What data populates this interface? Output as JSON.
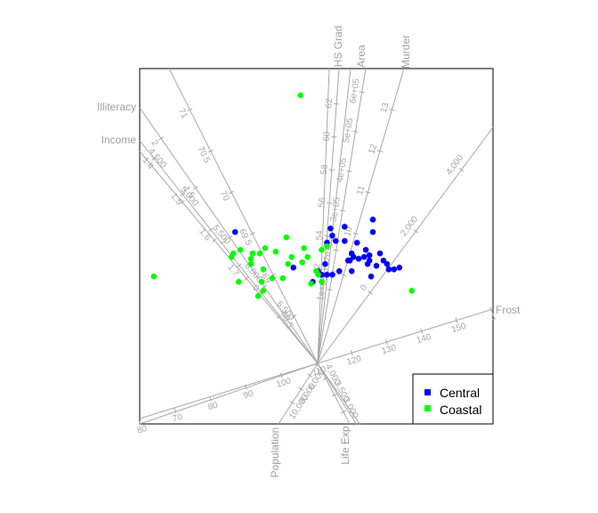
{
  "chart_data": {
    "type": "scatter",
    "title": "",
    "xlabel": "",
    "ylabel": "",
    "xlim": [
      -1,
      1
    ],
    "ylim": [
      -1,
      1
    ],
    "grid": false,
    "legend_position": "bottom-right",
    "legend": [
      {
        "name": "Central",
        "color": "#0000ff"
      },
      {
        "name": "Coastal",
        "color": "#00ff00"
      }
    ],
    "series": [
      {
        "name": "Central",
        "color": "#0000ff",
        "points": [
          [
            0.32,
            0.08
          ],
          [
            0.16,
            0.11
          ],
          [
            -0.46,
            0.08
          ],
          [
            0.08,
            0.1
          ],
          [
            0.18,
            -0.08
          ],
          [
            0.24,
            -0.07
          ],
          [
            0.3,
            -0.08
          ],
          [
            0.34,
            -0.11
          ],
          [
            0.36,
            -0.04
          ],
          [
            0.38,
            -0.08
          ],
          [
            0.4,
            -0.1
          ],
          [
            0.41,
            -0.13
          ],
          [
            0.44,
            -0.13
          ],
          [
            0.47,
            -0.12
          ],
          [
            0.21,
            -0.06
          ],
          [
            0.27,
            -0.06
          ],
          [
            0.29,
            -0.1
          ],
          [
            0.3,
            -0.05
          ],
          [
            0.19,
            -0.08
          ],
          [
            0.2,
            -0.14
          ],
          [
            0.13,
            -0.14
          ],
          [
            0.09,
            -0.16
          ],
          [
            0.05,
            -0.1
          ],
          [
            0.06,
            -0.16
          ],
          [
            0.31,
            -0.17
          ],
          [
            0.41,
            -0.13
          ],
          [
            -0.13,
            -0.12
          ],
          [
            -0.02,
            -0.2
          ],
          [
            0.2,
            -0.04
          ],
          [
            0.28,
            -0.02
          ],
          [
            0.32,
            0.15
          ],
          [
            0.23,
            0.02
          ],
          [
            0.16,
            0.03
          ],
          [
            0.11,
            0.03
          ],
          [
            0.09,
            0.06
          ],
          [
            0.06,
            0.02
          ],
          [
            0.03,
            -0.16
          ],
          [
            0.01,
            -0.14
          ]
        ]
      },
      {
        "name": "Coastal",
        "color": "#00ff00",
        "points": [
          [
            -0.09,
            0.85
          ],
          [
            -0.92,
            -0.17
          ],
          [
            -0.48,
            -0.06
          ],
          [
            -0.47,
            -0.04
          ],
          [
            -0.43,
            -0.02
          ],
          [
            -0.36,
            -0.04
          ],
          [
            -0.32,
            -0.04
          ],
          [
            -0.29,
            -0.01
          ],
          [
            -0.23,
            -0.03
          ],
          [
            -0.17,
            0.05
          ],
          [
            -0.14,
            -0.06
          ],
          [
            -0.16,
            -0.1
          ],
          [
            -0.3,
            -0.13
          ],
          [
            -0.37,
            -0.1
          ],
          [
            -0.44,
            -0.2
          ],
          [
            -0.33,
            -0.28
          ],
          [
            -0.25,
            -0.18
          ],
          [
            -0.19,
            -0.18
          ],
          [
            -0.31,
            -0.2
          ],
          [
            -0.08,
            -0.09
          ],
          [
            -0.05,
            -0.06
          ],
          [
            0.03,
            -0.02
          ],
          [
            -0.07,
            -0.01
          ],
          [
            -0.03,
            -0.21
          ],
          [
            0.0,
            -0.14
          ],
          [
            0.06,
            0.0
          ],
          [
            0.01,
            -0.16
          ],
          [
            -0.37,
            -0.07
          ],
          [
            0.54,
            -0.25
          ],
          [
            -0.3,
            -0.25
          ],
          [
            0.03,
            -0.2
          ]
        ]
      }
    ],
    "variable_axes": [
      {
        "name": "HS Grad",
        "ticks": [
          "52",
          "54",
          "56",
          "58",
          "60",
          "62"
        ]
      },
      {
        "name": "Area",
        "ticks": [
          "1e+05",
          "2e+05",
          "3e+05",
          "4e+05",
          "5e+05",
          "6e+05"
        ]
      },
      {
        "name": "Murder",
        "ticks": [
          "9",
          "10",
          "11",
          "12",
          "13"
        ]
      },
      {
        "name": "Illiteracy",
        "ticks": [
          "0.5",
          "1",
          "1.5",
          "2"
        ]
      },
      {
        "name": "",
        "ticks": [
          "0",
          "2,000",
          "4,000"
        ]
      },
      {
        "name": "Income",
        "ticks": [
          "1.7",
          "1.6",
          "1.5",
          "1.4"
        ]
      },
      {
        "name": "",
        "ticks": [
          "6,500",
          "6,000",
          "5,500",
          "5,000",
          "4,500"
        ]
      },
      {
        "name": "",
        "ticks": [
          "68.5",
          "69",
          "69.5",
          "70",
          "70.5",
          "71"
        ]
      },
      {
        "name": "Frost",
        "ticks": [
          "80",
          "70",
          "80",
          "90",
          "100",
          "110",
          "120",
          "130",
          "140",
          "150",
          "1"
        ]
      },
      {
        "name": "Population",
        "ticks": [
          "6,000",
          "8,000",
          "10,000"
        ]
      },
      {
        "name": "Life Exp",
        "ticks": [
          "4,000",
          "3,500",
          "3,000"
        ]
      }
    ]
  }
}
